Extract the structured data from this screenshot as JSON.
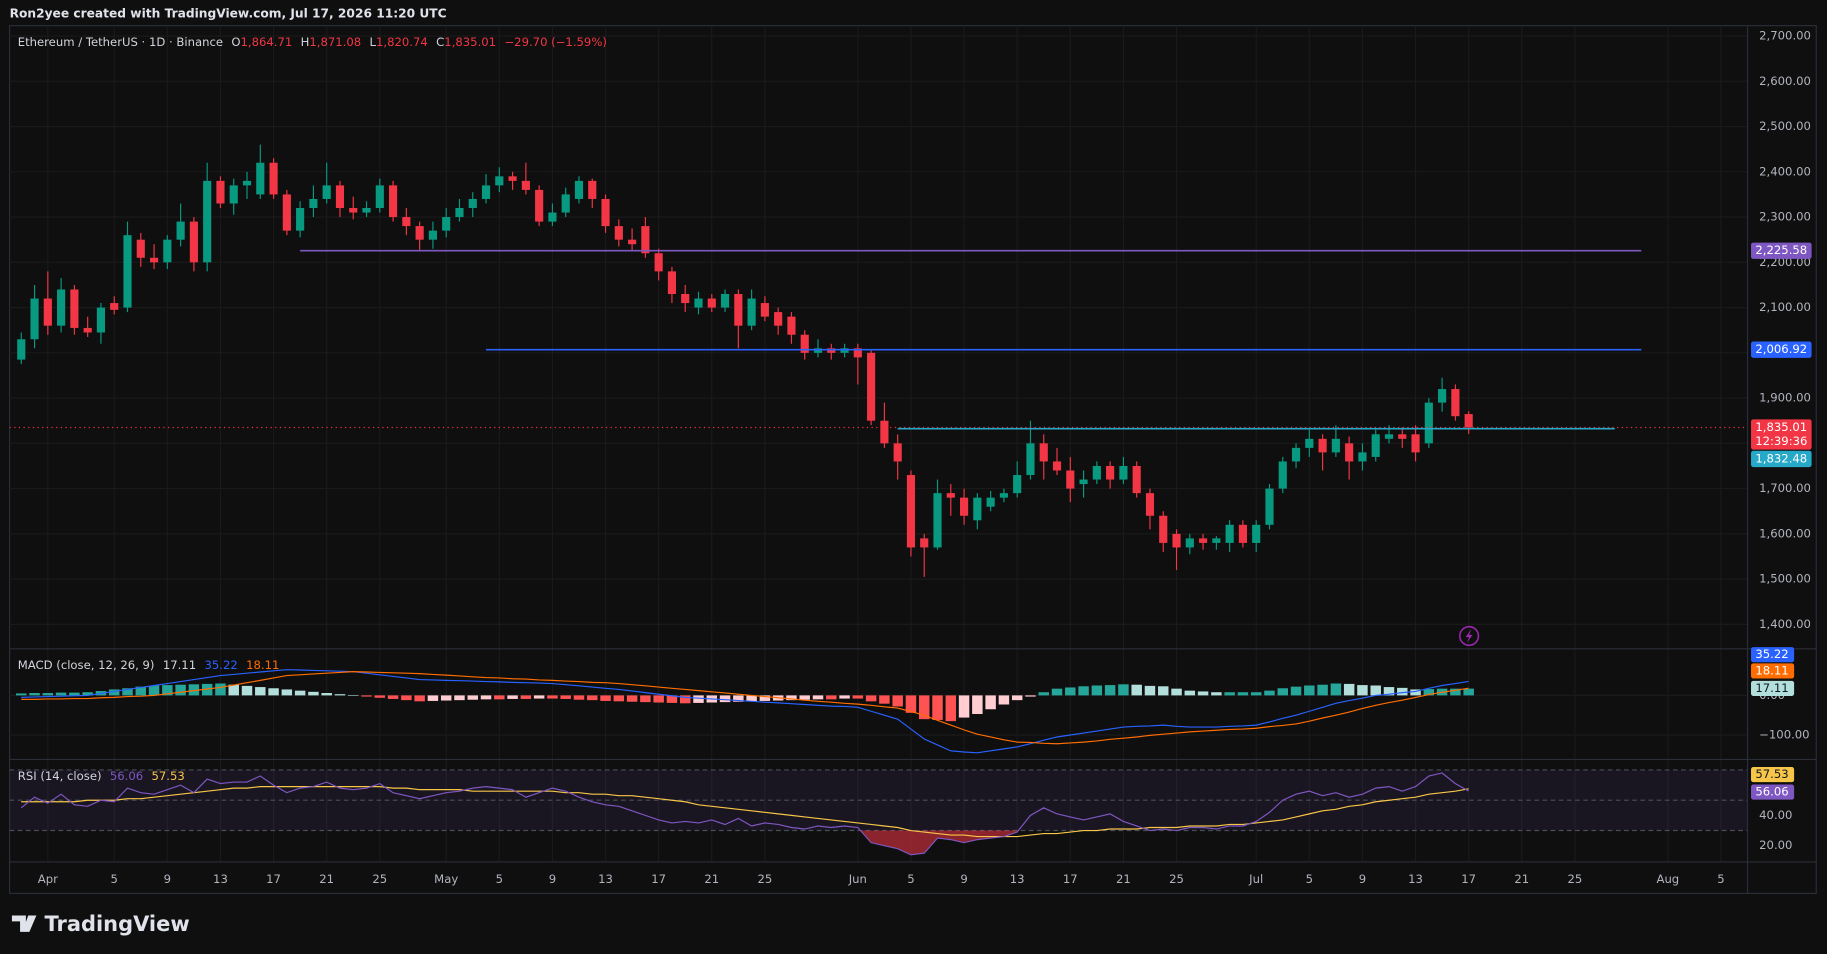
{
  "header": {
    "credit": "Ron2yee created with TradingView.com, Jul 17, 2026 11:20 UTC",
    "symbol": "Ethereum / TetherUS · 1D · Binance",
    "ohlc_letters": [
      "O",
      "H",
      "L",
      "C"
    ],
    "ohlc_values": [
      "1,864.71",
      "1,871.08",
      "1,820.74",
      "1,835.01"
    ],
    "change": "−29.70 (−1.59%)"
  },
  "chart_data": {
    "type": "candlestick",
    "up_color": "#089981",
    "down_color": "#f23645",
    "open": [
      1985,
      2030,
      2120,
      2060,
      2140,
      2055,
      2045,
      2110,
      2100,
      2250,
      2210,
      2200,
      2250,
      2290,
      2200,
      2380,
      2330,
      2370,
      2350,
      2420,
      2350,
      2270,
      2320,
      2340,
      2370,
      2320,
      2310,
      2320,
      2370,
      2300,
      2280,
      2250,
      2270,
      2300,
      2320,
      2340,
      2370,
      2390,
      2380,
      2360,
      2290,
      2310,
      2340,
      2380,
      2340,
      2280,
      2250,
      2280,
      2220,
      2180,
      2130,
      2100,
      2120,
      2100,
      2130,
      2060,
      2110,
      2090,
      2080,
      2040,
      2000,
      2010,
      2000,
      2010,
      2000,
      1850,
      1800,
      1730,
      1590,
      1570,
      1690,
      1680,
      1630,
      1660,
      1680,
      1690,
      1730,
      1800,
      1760,
      1740,
      1710,
      1720,
      1750,
      1720,
      1750,
      1690,
      1640,
      1600,
      1570,
      1590,
      1580,
      1580,
      1620,
      1580,
      1620,
      1700,
      1760,
      1790,
      1810,
      1780,
      1800,
      1760,
      1770,
      1810,
      1820,
      1820,
      1800,
      1890,
      1920,
      1864.71
    ],
    "high": [
      2045,
      2150,
      2180,
      2165,
      2150,
      2080,
      2110,
      2125,
      2290,
      2265,
      2240,
      2260,
      2330,
      2300,
      2420,
      2390,
      2385,
      2400,
      2460,
      2430,
      2360,
      2335,
      2370,
      2420,
      2380,
      2345,
      2335,
      2385,
      2380,
      2320,
      2290,
      2290,
      2320,
      2340,
      2355,
      2395,
      2410,
      2400,
      2420,
      2370,
      2330,
      2365,
      2390,
      2385,
      2350,
      2295,
      2275,
      2300,
      2230,
      2190,
      2150,
      2135,
      2130,
      2140,
      2140,
      2140,
      2125,
      2100,
      2090,
      2050,
      2030,
      2020,
      2020,
      2020,
      2005,
      1890,
      1820,
      1740,
      1600,
      1720,
      1710,
      1700,
      1690,
      1695,
      1700,
      1760,
      1850,
      1820,
      1790,
      1770,
      1740,
      1760,
      1760,
      1770,
      1760,
      1700,
      1650,
      1610,
      1600,
      1600,
      1595,
      1630,
      1630,
      1630,
      1710,
      1770,
      1800,
      1830,
      1820,
      1840,
      1815,
      1800,
      1830,
      1840,
      1835,
      1840,
      1900,
      1945,
      1930,
      1871.08
    ],
    "low": [
      1975,
      2010,
      2040,
      2045,
      2040,
      2035,
      2020,
      2085,
      2090,
      2190,
      2185,
      2185,
      2235,
      2180,
      2180,
      2320,
      2305,
      2340,
      2340,
      2340,
      2260,
      2255,
      2300,
      2330,
      2300,
      2295,
      2300,
      2310,
      2290,
      2260,
      2225,
      2230,
      2255,
      2290,
      2300,
      2330,
      2355,
      2360,
      2350,
      2280,
      2280,
      2300,
      2330,
      2320,
      2265,
      2235,
      2225,
      2210,
      2160,
      2110,
      2090,
      2085,
      2090,
      2090,
      2010,
      2050,
      2070,
      2040,
      2020,
      1985,
      1990,
      1985,
      1990,
      1930,
      1840,
      1790,
      1720,
      1550,
      1505,
      1565,
      1640,
      1620,
      1610,
      1650,
      1670,
      1680,
      1720,
      1720,
      1730,
      1670,
      1680,
      1710,
      1700,
      1710,
      1680,
      1610,
      1560,
      1520,
      1555,
      1565,
      1565,
      1560,
      1570,
      1560,
      1610,
      1690,
      1745,
      1770,
      1740,
      1770,
      1720,
      1740,
      1760,
      1800,
      1790,
      1760,
      1790,
      1870,
      1850,
      1820.74
    ],
    "close": [
      2030,
      2120,
      2060,
      2140,
      2055,
      2045,
      2100,
      2095,
      2260,
      2210,
      2200,
      2250,
      2290,
      2200,
      2380,
      2330,
      2370,
      2380,
      2420,
      2350,
      2270,
      2320,
      2340,
      2370,
      2320,
      2310,
      2320,
      2370,
      2300,
      2280,
      2250,
      2270,
      2300,
      2320,
      2340,
      2370,
      2390,
      2380,
      2360,
      2290,
      2310,
      2350,
      2380,
      2340,
      2280,
      2250,
      2240,
      2220,
      2180,
      2130,
      2110,
      2120,
      2100,
      2130,
      2060,
      2120,
      2080,
      2060,
      2040,
      2000,
      2010,
      2000,
      2010,
      1990,
      1850,
      1800,
      1760,
      1570,
      1570,
      1690,
      1680,
      1640,
      1680,
      1680,
      1690,
      1730,
      1800,
      1760,
      1740,
      1700,
      1720,
      1750,
      1720,
      1750,
      1690,
      1640,
      1580,
      1570,
      1590,
      1580,
      1590,
      1620,
      1580,
      1620,
      1700,
      1760,
      1790,
      1810,
      1780,
      1810,
      1760,
      1780,
      1820,
      1820,
      1810,
      1780,
      1890,
      1920,
      1860,
      1835.01
    ],
    "xlim": [
      -0.88,
      130
    ],
    "xticks": [
      {
        "value": 2,
        "label": "Apr"
      },
      {
        "value": 7,
        "label": "5"
      },
      {
        "value": 11,
        "label": "9"
      },
      {
        "value": 15,
        "label": "13"
      },
      {
        "value": 19,
        "label": "17"
      },
      {
        "value": 23,
        "label": "21"
      },
      {
        "value": 27,
        "label": "25"
      },
      {
        "value": 32,
        "label": "May"
      },
      {
        "value": 36,
        "label": "5"
      },
      {
        "value": 40,
        "label": "9"
      },
      {
        "value": 44,
        "label": "13"
      },
      {
        "value": 48,
        "label": "17"
      },
      {
        "value": 52,
        "label": "21"
      },
      {
        "value": 56,
        "label": "25"
      },
      {
        "value": 63,
        "label": "Jun"
      },
      {
        "value": 67,
        "label": "5"
      },
      {
        "value": 71,
        "label": "9"
      },
      {
        "value": 75,
        "label": "13"
      },
      {
        "value": 79,
        "label": "17"
      },
      {
        "value": 83,
        "label": "21"
      },
      {
        "value": 87,
        "label": "25"
      },
      {
        "value": 93,
        "label": "Jul"
      },
      {
        "value": 97,
        "label": "5"
      },
      {
        "value": 101,
        "label": "9"
      },
      {
        "value": 105,
        "label": "13"
      },
      {
        "value": 109,
        "label": "17"
      },
      {
        "value": 113,
        "label": "21"
      },
      {
        "value": 117,
        "label": "25"
      },
      {
        "value": 124,
        "label": "Aug"
      },
      {
        "value": 128,
        "label": "5"
      }
    ],
    "ylim": [
      1346,
      2723
    ],
    "yticks": [
      {
        "value": 1400,
        "label": "1,400.00"
      },
      {
        "value": 1500,
        "label": "1,500.00"
      },
      {
        "value": 1600,
        "label": "1,600.00"
      },
      {
        "value": 1700,
        "label": "1,700.00"
      },
      {
        "value": 1800,
        "label": "1,800.00"
      },
      {
        "value": 1900,
        "label": "1,900.00"
      },
      {
        "value": 2000,
        "label": "2,000.00"
      },
      {
        "value": 2100,
        "label": "2,100.00"
      },
      {
        "value": 2200,
        "label": "2,200.00"
      },
      {
        "value": 2300,
        "label": "2,300.00"
      },
      {
        "value": 2400,
        "label": "2,400.00"
      },
      {
        "value": 2500,
        "label": "2,500.00"
      },
      {
        "value": 2600,
        "label": "2,600.00"
      },
      {
        "value": 2700,
        "label": "2,700.00"
      }
    ],
    "grid": true,
    "levels": [
      {
        "value": 2225.58,
        "label": "2,225.58",
        "color": "#7e57c2",
        "from": 21,
        "to": 122
      },
      {
        "value": 2006.92,
        "label": "2,006.92",
        "color": "#2962ff",
        "from": 35,
        "to": 122
      },
      {
        "value": 1832.48,
        "label": "1,832.48",
        "color": "#26a8c9",
        "from": 66,
        "to": 120
      }
    ],
    "last_price": {
      "countdown": "12:39:36",
      "color": "#f23645"
    },
    "macd": {
      "title": "MACD (close, 12, 26, 9)",
      "ylim": [
        -161.8,
        117.6
      ],
      "yticks": [
        {
          "value": -100,
          "label": "−100.00"
        },
        {
          "value": 0,
          "label": "0.00"
        }
      ],
      "hist_colors": {
        "up_grow": "#26a69a",
        "up_fall": "#b2dfdb",
        "down_grow": "#ff5252",
        "down_fall": "#ffcdd2"
      },
      "histogram": [
        5,
        6,
        6,
        7,
        7,
        8,
        11,
        15,
        18,
        22,
        25,
        26,
        27,
        28,
        29,
        30,
        27,
        24,
        21,
        18,
        15,
        12,
        9,
        6,
        3,
        0,
        -3,
        -6,
        -9,
        -12,
        -15,
        -14,
        -13,
        -12,
        -11,
        -10,
        -10,
        -9,
        -9,
        -8,
        -8,
        -9,
        -11,
        -12,
        -14,
        -15,
        -16,
        -17,
        -18,
        -19,
        -20,
        -19,
        -18,
        -17,
        -16,
        -15,
        -14,
        -13,
        -12,
        -11,
        -10,
        -10,
        -8,
        -8,
        -15,
        -21,
        -28,
        -44,
        -60,
        -62,
        -65,
        -56,
        -47,
        -35,
        -23,
        -12,
        -3,
        8,
        17,
        20,
        23,
        25,
        26,
        28,
        27,
        24,
        23,
        17,
        12,
        10,
        8,
        8,
        8,
        8,
        12,
        18,
        22,
        25,
        27,
        30,
        29,
        26,
        25,
        21,
        19,
        15,
        16,
        17,
        17,
        17.11
      ],
      "macd_line": {
        "color": "#2962ff",
        "values": [
          -5,
          -4,
          -3,
          -2,
          -1,
          0,
          5,
          10,
          15,
          20,
          25,
          30,
          35,
          40,
          45,
          50,
          53,
          56,
          59,
          62,
          65,
          64,
          63,
          62,
          61,
          60,
          56,
          52,
          48,
          44,
          40,
          39,
          38,
          37,
          36,
          35,
          34,
          33,
          32,
          31,
          30,
          27,
          24,
          21,
          18,
          15,
          11,
          7,
          3,
          -1,
          -5,
          -7,
          -9,
          -11,
          -13,
          -15,
          -17,
          -19,
          -21,
          -23,
          -25,
          -27,
          -28,
          -30,
          -40,
          -50,
          -60,
          -85,
          -110,
          -125,
          -140,
          -143,
          -145,
          -140,
          -135,
          -130,
          -122,
          -113,
          -105,
          -100,
          -95,
          -90,
          -85,
          -80,
          -78,
          -77,
          -75,
          -78,
          -80,
          -80,
          -80,
          -78,
          -77,
          -75,
          -67,
          -58,
          -50,
          -40,
          -30,
          -20,
          -13,
          -7,
          0,
          3,
          7,
          10,
          18,
          25,
          30,
          35.22
        ]
      },
      "signal_line": {
        "color": "#ff6d00",
        "values": [
          -10,
          -10,
          -9,
          -9,
          -8,
          -8,
          -6,
          -5,
          -3,
          -2,
          0,
          4,
          8,
          12,
          16,
          20,
          26,
          32,
          38,
          44,
          50,
          52,
          54,
          56,
          58,
          60,
          59,
          58,
          57,
          56,
          55,
          53,
          51,
          49,
          47,
          45,
          44,
          42,
          41,
          39,
          38,
          36,
          35,
          33,
          32,
          30,
          27,
          24,
          21,
          18,
          15,
          12,
          9,
          6,
          3,
          0,
          -3,
          -6,
          -9,
          -12,
          -15,
          -17,
          -20,
          -22,
          -25,
          -29,
          -32,
          -41,
          -50,
          -63,
          -75,
          -87,
          -98,
          -105,
          -112,
          -118,
          -119,
          -121,
          -122,
          -120,
          -118,
          -115,
          -111,
          -108,
          -105,
          -101,
          -98,
          -95,
          -92,
          -90,
          -88,
          -86,
          -85,
          -83,
          -79,
          -76,
          -72,
          -65,
          -57,
          -50,
          -42,
          -33,
          -25,
          -18,
          -12,
          -5,
          2,
          8,
          13,
          18.11
        ]
      }
    },
    "rsi": {
      "title": "RSI (14, close)",
      "ylim": [
        9.2,
        76.9
      ],
      "yticks": [
        {
          "value": 20,
          "label": "20.00"
        },
        {
          "value": 40,
          "label": "40.00"
        }
      ],
      "bands": [
        30,
        50,
        70
      ],
      "rsi_line": {
        "color": "#7e57c2",
        "values": [
          45,
          52,
          48,
          54,
          47,
          46,
          50,
          49,
          58,
          55,
          54,
          57,
          60,
          55,
          64,
          61,
          62,
          62,
          66,
          60,
          55,
          58,
          59,
          62,
          58,
          57,
          58,
          61,
          55,
          53,
          51,
          53,
          55,
          56,
          58,
          59,
          58,
          57,
          52,
          55,
          58,
          56,
          52,
          49,
          47,
          46,
          43,
          40,
          37,
          35,
          36,
          35,
          37,
          34,
          38,
          33,
          35,
          34,
          32,
          31,
          33,
          32,
          33,
          32,
          22,
          20,
          18,
          14,
          15,
          25,
          24,
          22,
          24,
          25,
          26,
          29,
          40,
          45,
          41,
          39,
          37,
          39,
          41,
          36,
          33,
          30,
          31,
          30,
          32,
          32,
          31,
          33,
          33,
          36,
          42,
          50,
          54,
          56,
          53,
          55,
          52,
          54,
          58,
          59,
          56,
          59,
          66,
          68,
          61,
          56.06
        ]
      },
      "ma_line": {
        "color": "#f7c548",
        "values": [
          49,
          49,
          49,
          49,
          49,
          50,
          50,
          50,
          51,
          51,
          52,
          53,
          54,
          55,
          56,
          57,
          58,
          58,
          59,
          59,
          59,
          59,
          59,
          59,
          59,
          59,
          59,
          59,
          58,
          58,
          57,
          57,
          57,
          57,
          56,
          56,
          56,
          56,
          56,
          56,
          56,
          55,
          55,
          54,
          54,
          53,
          53,
          52,
          51,
          50,
          49,
          47,
          46,
          45,
          44,
          43,
          42,
          41,
          40,
          39,
          38,
          37,
          36,
          35,
          34,
          33,
          32,
          30,
          29,
          28,
          27,
          27,
          26,
          26,
          26,
          26,
          27,
          28,
          28,
          29,
          30,
          30,
          31,
          31,
          31,
          32,
          32,
          32,
          33,
          33,
          33,
          34,
          34,
          35,
          36,
          37,
          39,
          41,
          43,
          44,
          46,
          47,
          49,
          50,
          51,
          52,
          54,
          55,
          56,
          57.53
        ]
      }
    }
  },
  "footer": {
    "brand": "TradingView"
  }
}
